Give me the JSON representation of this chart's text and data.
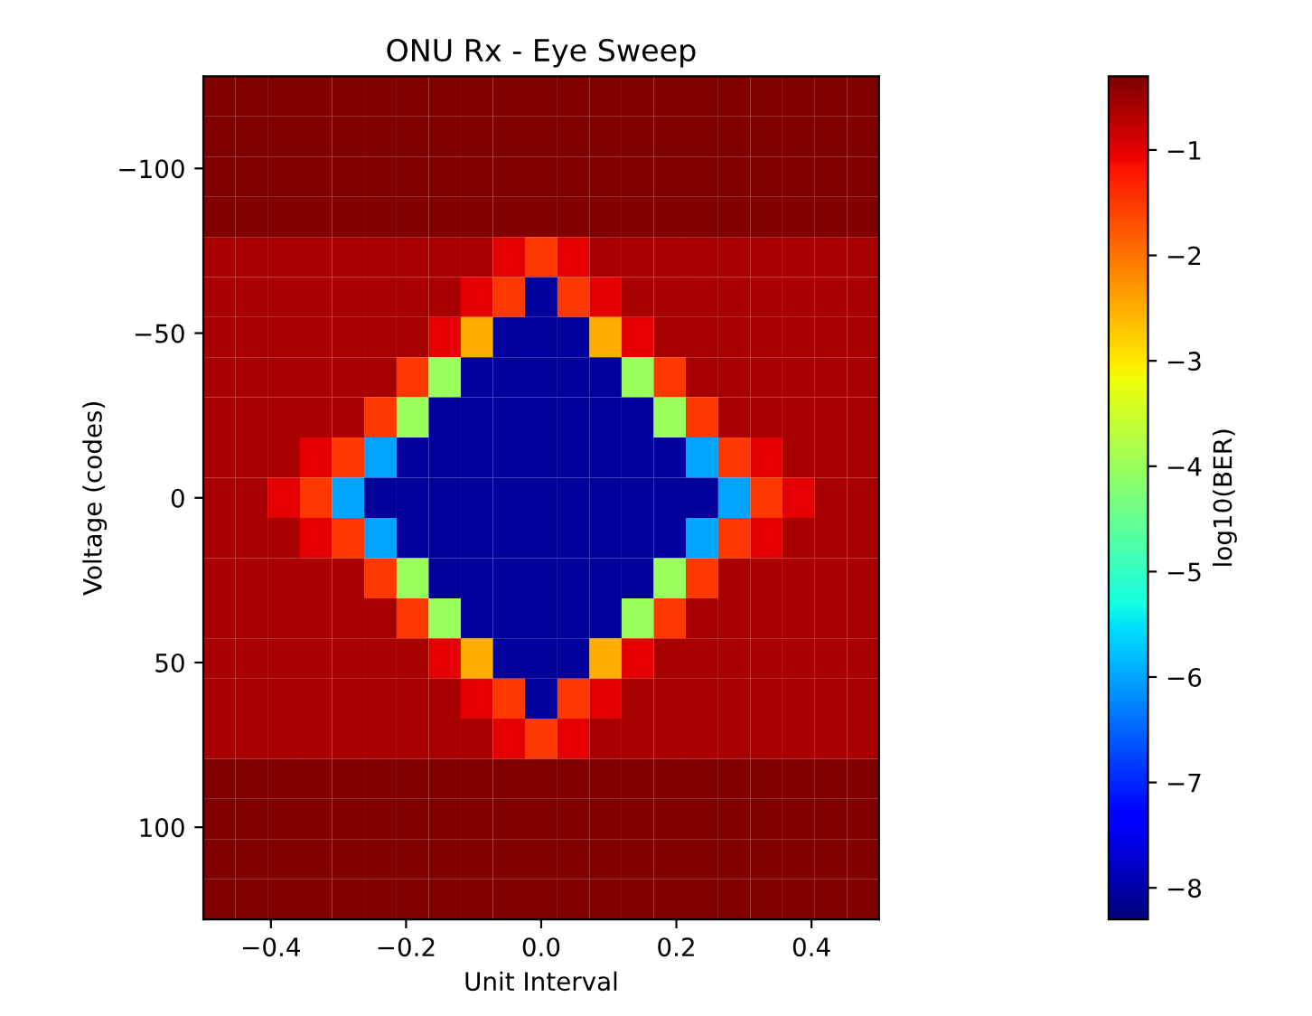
{
  "chart_data": {
    "type": "heatmap",
    "title": "ONU Rx - Eye Sweep",
    "xlabel": "Unit Interval",
    "ylabel": "Voltage (codes)",
    "clabel": "log10(BER)",
    "x": [
      -0.476,
      -0.429,
      -0.381,
      -0.333,
      -0.286,
      -0.238,
      -0.19,
      -0.143,
      -0.095,
      -0.048,
      0,
      0.048,
      0.095,
      0.143,
      0.19,
      0.238,
      0.286,
      0.333,
      0.381,
      0.429,
      0.476
    ],
    "y": [
      -121.9,
      -109.7,
      -97.5,
      -85.3,
      -73.1,
      -61.0,
      -48.8,
      -36.6,
      -24.4,
      -12.2,
      0,
      12.2,
      24.4,
      36.6,
      48.8,
      61.0,
      73.1,
      85.3,
      97.5,
      109.7,
      121.9
    ],
    "xlim": [
      -0.5,
      0.5
    ],
    "ylim": [
      128,
      -128
    ],
    "xticks": [
      {
        "value": -0.4,
        "label": "−0.4"
      },
      {
        "value": -0.2,
        "label": "−0.2"
      },
      {
        "value": 0,
        "label": "0.0"
      },
      {
        "value": 0.2,
        "label": "0.2"
      },
      {
        "value": 0.4,
        "label": "0.4"
      }
    ],
    "yticks": [
      {
        "value": -100,
        "label": "−100"
      },
      {
        "value": -50,
        "label": "−50"
      },
      {
        "value": 0,
        "label": "0"
      },
      {
        "value": 50,
        "label": "50"
      },
      {
        "value": 100,
        "label": "100"
      }
    ],
    "clim": [
      -8.3,
      -0.3
    ],
    "cticks": [
      {
        "value": -8,
        "label": "−8"
      },
      {
        "value": -7,
        "label": "−7"
      },
      {
        "value": -6,
        "label": "−6"
      },
      {
        "value": -5,
        "label": "−5"
      },
      {
        "value": -4,
        "label": "−4"
      },
      {
        "value": -3,
        "label": "−3"
      },
      {
        "value": -2,
        "label": "−2"
      },
      {
        "value": -1,
        "label": "−1"
      }
    ],
    "cells": [
      [
        -0.3,
        -0.3,
        -0.3,
        -0.3,
        -0.3,
        -0.3,
        -0.3,
        -0.3,
        -0.3,
        -0.3,
        -0.3,
        -0.3,
        -0.3,
        -0.3,
        -0.3,
        -0.3,
        -0.3,
        -0.3,
        -0.3,
        -0.3,
        -0.3
      ],
      [
        -0.3,
        -0.3,
        -0.3,
        -0.3,
        -0.3,
        -0.3,
        -0.3,
        -0.3,
        -0.3,
        -0.3,
        -0.3,
        -0.3,
        -0.3,
        -0.3,
        -0.3,
        -0.3,
        -0.3,
        -0.3,
        -0.3,
        -0.3,
        -0.3
      ],
      [
        -0.3,
        -0.3,
        -0.3,
        -0.3,
        -0.3,
        -0.3,
        -0.3,
        -0.3,
        -0.3,
        -0.3,
        -0.3,
        -0.3,
        -0.3,
        -0.3,
        -0.3,
        -0.3,
        -0.3,
        -0.3,
        -0.3,
        -0.3,
        -0.3
      ],
      [
        -0.3,
        -0.3,
        -0.3,
        -0.3,
        -0.3,
        -0.3,
        -0.3,
        -0.3,
        -0.3,
        -0.3,
        -0.3,
        -0.3,
        -0.3,
        -0.3,
        -0.3,
        -0.3,
        -0.3,
        -0.3,
        -0.3,
        -0.3,
        -0.3
      ],
      [
        -0.6,
        -0.6,
        -0.6,
        -0.6,
        -0.6,
        -0.6,
        -0.6,
        -0.6,
        -0.6,
        -1.0,
        -1.5,
        -1.0,
        -0.6,
        -0.6,
        -0.6,
        -0.6,
        -0.6,
        -0.6,
        -0.6,
        -0.6,
        -0.6
      ],
      [
        -0.6,
        -0.6,
        -0.6,
        -0.6,
        -0.6,
        -0.6,
        -0.6,
        -0.6,
        -1.0,
        -1.5,
        -8.1,
        -1.5,
        -1.0,
        -0.6,
        -0.6,
        -0.6,
        -0.6,
        -0.6,
        -0.6,
        -0.6,
        -0.6
      ],
      [
        -0.6,
        -0.6,
        -0.6,
        -0.6,
        -0.6,
        -0.6,
        -0.6,
        -1.0,
        -2.5,
        -8.1,
        -8.1,
        -8.1,
        -2.5,
        -1.0,
        -0.6,
        -0.6,
        -0.6,
        -0.6,
        -0.6,
        -0.6,
        -0.6
      ],
      [
        -0.6,
        -0.6,
        -0.6,
        -0.6,
        -0.6,
        -0.6,
        -1.5,
        -4,
        -8.1,
        -8.1,
        -8.1,
        -8.1,
        -8.1,
        -4,
        -1.5,
        -0.6,
        -0.6,
        -0.6,
        -0.6,
        -0.6,
        -0.6
      ],
      [
        -0.6,
        -0.6,
        -0.6,
        -0.6,
        -0.6,
        -1.5,
        -4,
        -8.1,
        -8.1,
        -8.1,
        -8.1,
        -8.1,
        -8.1,
        -8.1,
        -4,
        -1.5,
        -0.6,
        -0.6,
        -0.6,
        -0.6,
        -0.6
      ],
      [
        -0.6,
        -0.6,
        -0.6,
        -1.0,
        -1.5,
        -6,
        -8.1,
        -8.1,
        -8.1,
        -8.1,
        -8.1,
        -8.1,
        -8.1,
        -8.1,
        -8.1,
        -6,
        -1.5,
        -1.0,
        -0.6,
        -0.6,
        -0.6
      ],
      [
        -0.6,
        -0.6,
        -1.0,
        -1.5,
        -6,
        -8.1,
        -8.1,
        -8.1,
        -8.1,
        -8.1,
        -8.1,
        -8.1,
        -8.1,
        -8.1,
        -8.1,
        -8.1,
        -6,
        -1.5,
        -1.0,
        -0.6,
        -0.6
      ],
      [
        -0.6,
        -0.6,
        -0.6,
        -1.0,
        -1.5,
        -6,
        -8.1,
        -8.1,
        -8.1,
        -8.1,
        -8.1,
        -8.1,
        -8.1,
        -8.1,
        -8.1,
        -6,
        -1.5,
        -1.0,
        -0.6,
        -0.6,
        -0.6
      ],
      [
        -0.6,
        -0.6,
        -0.6,
        -0.6,
        -0.6,
        -1.5,
        -4,
        -8.1,
        -8.1,
        -8.1,
        -8.1,
        -8.1,
        -8.1,
        -8.1,
        -4,
        -1.5,
        -0.6,
        -0.6,
        -0.6,
        -0.6,
        -0.6
      ],
      [
        -0.6,
        -0.6,
        -0.6,
        -0.6,
        -0.6,
        -0.6,
        -1.5,
        -4,
        -8.1,
        -8.1,
        -8.1,
        -8.1,
        -8.1,
        -4,
        -1.5,
        -0.6,
        -0.6,
        -0.6,
        -0.6,
        -0.6,
        -0.6
      ],
      [
        -0.6,
        -0.6,
        -0.6,
        -0.6,
        -0.6,
        -0.6,
        -0.6,
        -1.0,
        -2.5,
        -8.1,
        -8.1,
        -8.1,
        -2.5,
        -1.0,
        -0.6,
        -0.6,
        -0.6,
        -0.6,
        -0.6,
        -0.6,
        -0.6
      ],
      [
        -0.6,
        -0.6,
        -0.6,
        -0.6,
        -0.6,
        -0.6,
        -0.6,
        -0.6,
        -1.0,
        -1.5,
        -8.1,
        -1.5,
        -1.0,
        -0.6,
        -0.6,
        -0.6,
        -0.6,
        -0.6,
        -0.6,
        -0.6,
        -0.6
      ],
      [
        -0.6,
        -0.6,
        -0.6,
        -0.6,
        -0.6,
        -0.6,
        -0.6,
        -0.6,
        -0.6,
        -1.0,
        -1.5,
        -1.0,
        -0.6,
        -0.6,
        -0.6,
        -0.6,
        -0.6,
        -0.6,
        -0.6,
        -0.6,
        -0.6
      ],
      [
        -0.3,
        -0.3,
        -0.3,
        -0.3,
        -0.3,
        -0.3,
        -0.3,
        -0.3,
        -0.3,
        -0.3,
        -0.3,
        -0.3,
        -0.3,
        -0.3,
        -0.3,
        -0.3,
        -0.3,
        -0.3,
        -0.3,
        -0.3,
        -0.3
      ],
      [
        -0.3,
        -0.3,
        -0.3,
        -0.3,
        -0.3,
        -0.3,
        -0.3,
        -0.3,
        -0.3,
        -0.3,
        -0.3,
        -0.3,
        -0.3,
        -0.3,
        -0.3,
        -0.3,
        -0.3,
        -0.3,
        -0.3,
        -0.3,
        -0.3
      ],
      [
        -0.3,
        -0.3,
        -0.3,
        -0.3,
        -0.3,
        -0.3,
        -0.3,
        -0.3,
        -0.3,
        -0.3,
        -0.3,
        -0.3,
        -0.3,
        -0.3,
        -0.3,
        -0.3,
        -0.3,
        -0.3,
        -0.3,
        -0.3,
        -0.3
      ],
      [
        -0.3,
        -0.3,
        -0.3,
        -0.3,
        -0.3,
        -0.3,
        -0.3,
        -0.3,
        -0.3,
        -0.3,
        -0.3,
        -0.3,
        -0.3,
        -0.3,
        -0.3,
        -0.3,
        -0.3,
        -0.3,
        -0.3,
        -0.3,
        -0.3
      ]
    ]
  }
}
